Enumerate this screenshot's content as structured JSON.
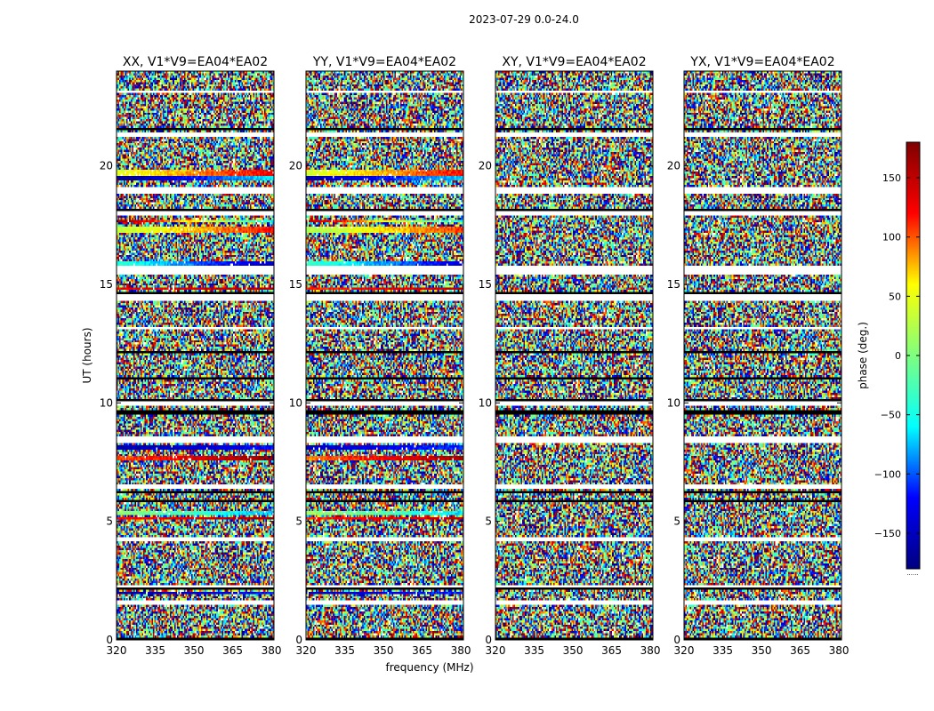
{
  "figure": {
    "suptitle": "2023-07-29 0.0-24.0"
  },
  "chart_data": {
    "type": "heatmap",
    "xlabel": "frequency (MHz)",
    "ylabel": "UT (hours)",
    "xlim": [
      320,
      381
    ],
    "ylim": [
      0,
      24
    ],
    "xticks": [
      320,
      335,
      350,
      365,
      380
    ],
    "yticks": [
      0,
      5,
      10,
      15,
      20
    ],
    "colorbar": {
      "label": "phase (deg.)",
      "range": [
        -180,
        180
      ],
      "ticks": [
        150,
        100,
        50,
        0,
        -50,
        -100,
        -150
      ],
      "tick_labels": [
        "150",
        "100",
        "50",
        "0",
        "−50",
        "−100",
        "−150"
      ],
      "colormap": [
        "#00007f",
        "#0000ff",
        "#00ffff",
        "#7fff7f",
        "#ffff00",
        "#ff0000",
        "#7f0000"
      ],
      "cap": "......"
    },
    "panels": [
      {
        "title": "XX, V1*V9=EA04*EA02",
        "flagged_hours": [
          [
            23.05,
            23.2
          ],
          [
            21.25,
            21.45
          ],
          [
            18.85,
            19.1
          ],
          [
            17.9,
            18.05
          ],
          [
            15.45,
            15.75
          ],
          [
            14.3,
            14.55
          ],
          [
            13.1,
            13.2
          ],
          [
            9.9,
            10.05
          ],
          [
            8.35,
            8.6
          ],
          [
            6.35,
            6.55
          ],
          [
            4.15,
            4.3
          ],
          [
            2.25,
            2.35
          ],
          [
            1.5,
            1.7
          ]
        ],
        "black_hours": [
          [
            21.5,
            21.6
          ],
          [
            18.1,
            18.2
          ],
          [
            14.6,
            14.7
          ],
          [
            12.1,
            12.2
          ],
          [
            11.0,
            11.1
          ],
          [
            10.1,
            10.2
          ],
          [
            9.55,
            9.65
          ],
          [
            6.2,
            6.3
          ],
          [
            5.8,
            5.9
          ],
          [
            2.1,
            2.2
          ],
          [
            0.0,
            0.1
          ]
        ],
        "coherent_bands": [
          {
            "from": 19.6,
            "to": 19.8,
            "start": 45,
            "end": 130
          },
          {
            "from": 19.4,
            "to": 19.55,
            "start": -170,
            "end": -60
          },
          {
            "from": 17.6,
            "to": 17.75,
            "start": 170,
            "end": -60
          },
          {
            "from": 17.2,
            "to": 17.4,
            "start": 30,
            "end": 120
          },
          {
            "from": 15.8,
            "to": 16.0,
            "start": -40,
            "end": -150
          },
          {
            "from": 14.75,
            "to": 14.85,
            "start": 120,
            "end": 160
          },
          {
            "from": 8.0,
            "to": 8.2,
            "start": -160,
            "end": -120
          },
          {
            "from": 7.6,
            "to": 7.75,
            "start": 100,
            "end": 170
          },
          {
            "from": 5.3,
            "to": 5.45,
            "start": 10,
            "end": -80
          },
          {
            "from": 5.05,
            "to": 5.2,
            "start": 120,
            "end": 160
          },
          {
            "from": 1.95,
            "to": 2.05,
            "start": -160,
            "end": -120
          }
        ]
      },
      {
        "title": "YY, V1*V9=EA04*EA02",
        "flagged_hours": [
          [
            23.05,
            23.2
          ],
          [
            21.25,
            21.45
          ],
          [
            18.85,
            19.1
          ],
          [
            17.9,
            18.05
          ],
          [
            15.45,
            15.75
          ],
          [
            14.3,
            14.55
          ],
          [
            13.1,
            13.2
          ],
          [
            9.9,
            10.05
          ],
          [
            8.35,
            8.6
          ],
          [
            6.35,
            6.55
          ],
          [
            4.15,
            4.3
          ],
          [
            2.25,
            2.35
          ],
          [
            1.5,
            1.7
          ]
        ],
        "black_hours": [
          [
            21.5,
            21.6
          ],
          [
            18.1,
            18.2
          ],
          [
            14.6,
            14.7
          ],
          [
            12.1,
            12.2
          ],
          [
            11.0,
            11.1
          ],
          [
            10.1,
            10.2
          ],
          [
            9.55,
            9.65
          ],
          [
            6.2,
            6.3
          ],
          [
            5.8,
            5.9
          ],
          [
            2.1,
            2.2
          ],
          [
            0.0,
            0.1
          ]
        ],
        "coherent_bands": [
          {
            "from": 19.6,
            "to": 19.8,
            "start": 40,
            "end": 120
          },
          {
            "from": 19.4,
            "to": 19.55,
            "start": -160,
            "end": -70
          },
          {
            "from": 17.6,
            "to": 17.75,
            "start": 160,
            "end": -50
          },
          {
            "from": 17.2,
            "to": 17.4,
            "start": 20,
            "end": 110
          },
          {
            "from": 15.8,
            "to": 16.0,
            "start": -30,
            "end": -140
          },
          {
            "from": 14.75,
            "to": 14.85,
            "start": 110,
            "end": 150
          },
          {
            "from": 8.0,
            "to": 8.2,
            "start": -150,
            "end": -110
          },
          {
            "from": 7.6,
            "to": 7.75,
            "start": 90,
            "end": 160
          },
          {
            "from": 5.3,
            "to": 5.45,
            "start": 20,
            "end": -70
          },
          {
            "from": 5.05,
            "to": 5.2,
            "start": 110,
            "end": 150
          },
          {
            "from": 1.95,
            "to": 2.05,
            "start": -150,
            "end": -110
          }
        ]
      },
      {
        "title": "XY, V1*V9=EA04*EA02",
        "flagged_hours": [
          [
            23.05,
            23.2
          ],
          [
            21.25,
            21.45
          ],
          [
            18.85,
            19.1
          ],
          [
            17.9,
            18.05
          ],
          [
            15.45,
            15.75
          ],
          [
            14.3,
            14.55
          ],
          [
            13.1,
            13.2
          ],
          [
            9.9,
            10.05
          ],
          [
            8.35,
            8.6
          ],
          [
            6.35,
            6.55
          ],
          [
            4.15,
            4.3
          ],
          [
            2.25,
            2.35
          ],
          [
            1.5,
            1.7
          ]
        ],
        "black_hours": [
          [
            21.5,
            21.6
          ],
          [
            18.1,
            18.2
          ],
          [
            14.6,
            14.7
          ],
          [
            12.1,
            12.2
          ],
          [
            11.0,
            11.1
          ],
          [
            10.1,
            10.2
          ],
          [
            9.55,
            9.65
          ],
          [
            6.2,
            6.3
          ],
          [
            5.8,
            5.9
          ],
          [
            2.1,
            2.2
          ],
          [
            0.0,
            0.1
          ]
        ],
        "coherent_bands": []
      },
      {
        "title": "YX, V1*V9=EA04*EA02",
        "flagged_hours": [
          [
            23.05,
            23.2
          ],
          [
            21.25,
            21.45
          ],
          [
            18.85,
            19.1
          ],
          [
            17.9,
            18.05
          ],
          [
            15.45,
            15.75
          ],
          [
            14.3,
            14.55
          ],
          [
            13.1,
            13.2
          ],
          [
            9.9,
            10.05
          ],
          [
            8.35,
            8.6
          ],
          [
            6.35,
            6.55
          ],
          [
            4.15,
            4.3
          ],
          [
            2.25,
            2.35
          ],
          [
            1.5,
            1.7
          ]
        ],
        "black_hours": [
          [
            21.5,
            21.6
          ],
          [
            18.1,
            18.2
          ],
          [
            14.6,
            14.7
          ],
          [
            12.1,
            12.2
          ],
          [
            11.0,
            11.1
          ],
          [
            10.1,
            10.2
          ],
          [
            9.55,
            9.65
          ],
          [
            6.2,
            6.3
          ],
          [
            5.8,
            5.9
          ],
          [
            2.1,
            2.2
          ],
          [
            0.0,
            0.1
          ]
        ],
        "coherent_bands": []
      }
    ]
  }
}
